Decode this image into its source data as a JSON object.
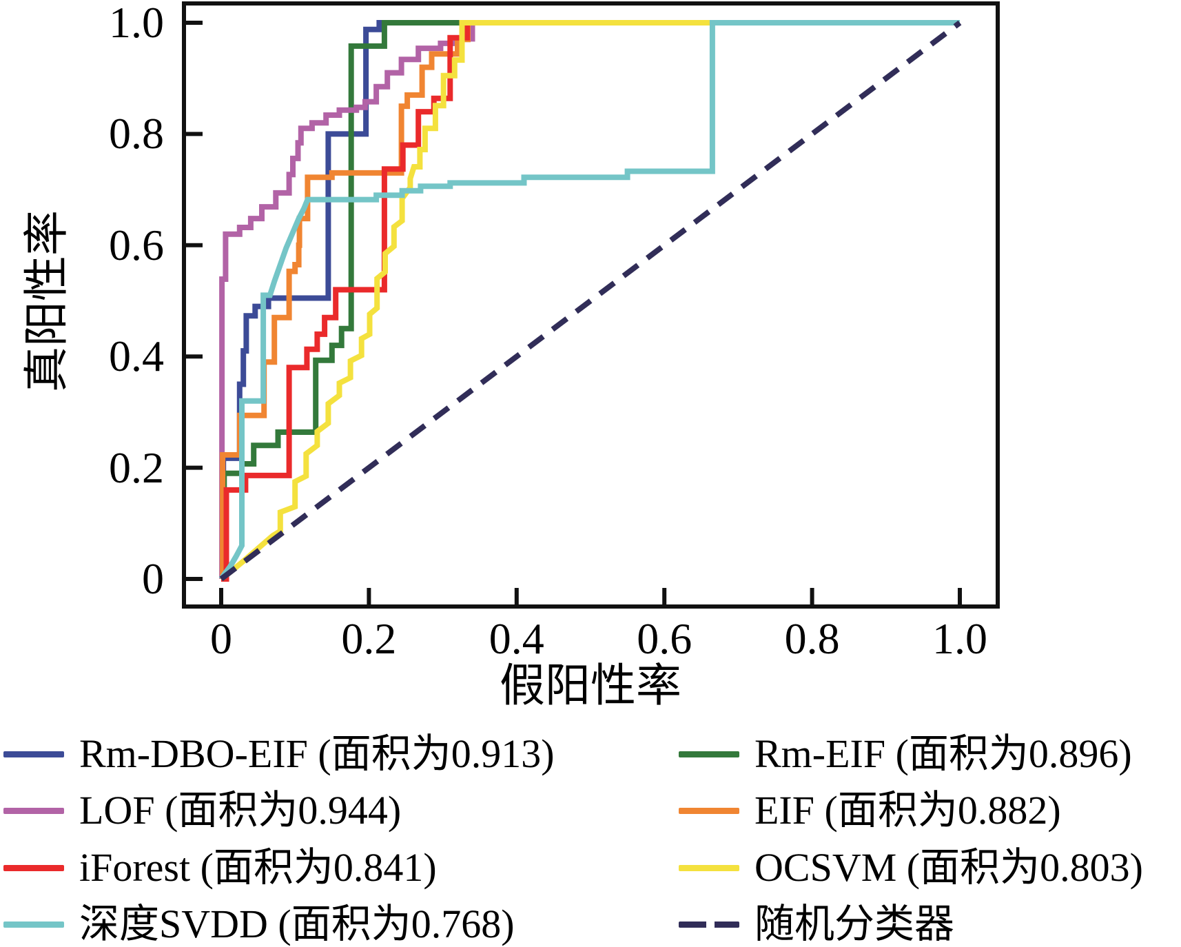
{
  "chart_data": {
    "type": "line",
    "title": "",
    "xlabel": "假阳性率",
    "ylabel": "真阳性率",
    "xlim": [
      -0.05,
      1.05
    ],
    "ylim": [
      -0.05,
      1.05
    ],
    "grid": false,
    "legend_position": "below",
    "frame_color": "#111111",
    "x_ticks": [
      0,
      0.2,
      0.4,
      0.6,
      0.8,
      1.0
    ],
    "x_tick_labels": [
      "0",
      "0.2",
      "0.4",
      "0.6",
      "0.8",
      "1.0"
    ],
    "y_ticks": [
      0,
      0.2,
      0.4,
      0.6,
      0.8,
      1.0
    ],
    "y_tick_labels": [
      "0",
      "0.2",
      "0.4",
      "0.6",
      "0.8",
      "1.0"
    ],
    "series": [
      {
        "name": "Rm-DBO-EIF",
        "label": "Rm-DBO-EIF (面积为0.913)",
        "auc": 0.913,
        "color": "#3C4B97",
        "dash": false,
        "points": [
          [
            0,
            0
          ],
          [
            0.003,
            0
          ],
          [
            0.003,
            0.217
          ],
          [
            0.025,
            0.217
          ],
          [
            0.025,
            0.35
          ],
          [
            0.03,
            0.35
          ],
          [
            0.03,
            0.41
          ],
          [
            0.034,
            0.41
          ],
          [
            0.034,
            0.473
          ],
          [
            0.046,
            0.473
          ],
          [
            0.046,
            0.49
          ],
          [
            0.064,
            0.49
          ],
          [
            0.064,
            0.505
          ],
          [
            0.145,
            0.505
          ],
          [
            0.145,
            0.8
          ],
          [
            0.196,
            0.8
          ],
          [
            0.196,
            0.988
          ],
          [
            0.214,
            0.988
          ],
          [
            0.214,
            1
          ],
          [
            1,
            1
          ]
        ]
      },
      {
        "name": "Rm-EIF",
        "label": "Rm-EIF (面积为0.896)",
        "auc": 0.896,
        "color": "#33793B",
        "dash": false,
        "points": [
          [
            0,
            0
          ],
          [
            0.004,
            0
          ],
          [
            0.004,
            0.19
          ],
          [
            0.028,
            0.19
          ],
          [
            0.028,
            0.207
          ],
          [
            0.044,
            0.207
          ],
          [
            0.044,
            0.24
          ],
          [
            0.077,
            0.24
          ],
          [
            0.077,
            0.264
          ],
          [
            0.128,
            0.264
          ],
          [
            0.128,
            0.393
          ],
          [
            0.15,
            0.393
          ],
          [
            0.15,
            0.42
          ],
          [
            0.163,
            0.42
          ],
          [
            0.163,
            0.45
          ],
          [
            0.176,
            0.45
          ],
          [
            0.176,
            0.958
          ],
          [
            0.221,
            0.958
          ],
          [
            0.221,
            1
          ],
          [
            1,
            1
          ]
        ]
      },
      {
        "name": "LOF",
        "label": "LOF (面积为0.944)",
        "auc": 0.944,
        "color": "#B263A6",
        "dash": false,
        "points": [
          [
            0,
            0
          ],
          [
            0.001,
            0
          ],
          [
            0.001,
            0.539
          ],
          [
            0.006,
            0.539
          ],
          [
            0.006,
            0.62
          ],
          [
            0.025,
            0.62
          ],
          [
            0.025,
            0.632
          ],
          [
            0.04,
            0.632
          ],
          [
            0.04,
            0.648
          ],
          [
            0.055,
            0.648
          ],
          [
            0.055,
            0.669
          ],
          [
            0.074,
            0.669
          ],
          [
            0.074,
            0.694
          ],
          [
            0.092,
            0.694
          ],
          [
            0.092,
            0.727
          ],
          [
            0.097,
            0.727
          ],
          [
            0.097,
            0.756
          ],
          [
            0.104,
            0.756
          ],
          [
            0.104,
            0.784
          ],
          [
            0.108,
            0.784
          ],
          [
            0.108,
            0.81
          ],
          [
            0.123,
            0.81
          ],
          [
            0.123,
            0.82
          ],
          [
            0.142,
            0.82
          ],
          [
            0.142,
            0.834
          ],
          [
            0.16,
            0.834
          ],
          [
            0.16,
            0.843
          ],
          [
            0.183,
            0.843
          ],
          [
            0.183,
            0.848
          ],
          [
            0.195,
            0.848
          ],
          [
            0.195,
            0.858
          ],
          [
            0.21,
            0.858
          ],
          [
            0.21,
            0.885
          ],
          [
            0.225,
            0.885
          ],
          [
            0.225,
            0.91
          ],
          [
            0.244,
            0.91
          ],
          [
            0.244,
            0.934
          ],
          [
            0.267,
            0.934
          ],
          [
            0.267,
            0.954
          ],
          [
            0.297,
            0.954
          ],
          [
            0.297,
            0.963
          ],
          [
            0.318,
            0.963
          ],
          [
            0.318,
            0.971
          ],
          [
            0.34,
            0.971
          ],
          [
            0.34,
            1
          ],
          [
            1,
            1
          ]
        ]
      },
      {
        "name": "EIF",
        "label": "EIF (面积为0.882)",
        "auc": 0.882,
        "color": "#F08532",
        "dash": false,
        "points": [
          [
            0,
            0
          ],
          [
            0.002,
            0
          ],
          [
            0.002,
            0.223
          ],
          [
            0.025,
            0.223
          ],
          [
            0.025,
            0.294
          ],
          [
            0.058,
            0.294
          ],
          [
            0.058,
            0.39
          ],
          [
            0.072,
            0.39
          ],
          [
            0.072,
            0.47
          ],
          [
            0.092,
            0.47
          ],
          [
            0.092,
            0.553
          ],
          [
            0.1,
            0.553
          ],
          [
            0.1,
            0.565
          ],
          [
            0.105,
            0.565
          ],
          [
            0.105,
            0.6
          ],
          [
            0.106,
            0.6
          ],
          [
            0.106,
            0.648
          ],
          [
            0.117,
            0.648
          ],
          [
            0.117,
            0.722
          ],
          [
            0.15,
            0.722
          ],
          [
            0.15,
            0.73
          ],
          [
            0.244,
            0.73
          ],
          [
            0.244,
            0.85
          ],
          [
            0.252,
            0.85
          ],
          [
            0.252,
            0.87
          ],
          [
            0.272,
            0.87
          ],
          [
            0.272,
            0.92
          ],
          [
            0.285,
            0.92
          ],
          [
            0.285,
            0.944
          ],
          [
            0.32,
            0.944
          ],
          [
            0.32,
            0.97
          ],
          [
            0.334,
            0.97
          ],
          [
            0.334,
            1
          ],
          [
            1,
            1
          ]
        ]
      },
      {
        "name": "iForest",
        "label": "iForest (面积为0.841)",
        "auc": 0.841,
        "color": "#EA2A2B",
        "dash": false,
        "points": [
          [
            0,
            0
          ],
          [
            0.007,
            0
          ],
          [
            0.007,
            0.16
          ],
          [
            0.033,
            0.16
          ],
          [
            0.033,
            0.186
          ],
          [
            0.092,
            0.186
          ],
          [
            0.092,
            0.38
          ],
          [
            0.116,
            0.38
          ],
          [
            0.116,
            0.413
          ],
          [
            0.13,
            0.413
          ],
          [
            0.13,
            0.44
          ],
          [
            0.14,
            0.44
          ],
          [
            0.14,
            0.47
          ],
          [
            0.155,
            0.47
          ],
          [
            0.155,
            0.52
          ],
          [
            0.221,
            0.52
          ],
          [
            0.221,
            0.737
          ],
          [
            0.246,
            0.737
          ],
          [
            0.246,
            0.78
          ],
          [
            0.267,
            0.78
          ],
          [
            0.267,
            0.84
          ],
          [
            0.288,
            0.84
          ],
          [
            0.288,
            0.864
          ],
          [
            0.31,
            0.864
          ],
          [
            0.31,
            0.973
          ],
          [
            0.333,
            0.973
          ],
          [
            0.333,
            1
          ],
          [
            1,
            1
          ]
        ]
      },
      {
        "name": "OCSVM",
        "label": "OCSVM (面积为0.803)",
        "auc": 0.803,
        "color": "#F4E13E",
        "dash": false,
        "points": [
          [
            0,
            0
          ],
          [
            0.012,
            0.012
          ],
          [
            0.03,
            0.032
          ],
          [
            0.05,
            0.055
          ],
          [
            0.07,
            0.078
          ],
          [
            0.08,
            0.086
          ],
          [
            0.08,
            0.12
          ],
          [
            0.1,
            0.13
          ],
          [
            0.1,
            0.175
          ],
          [
            0.115,
            0.185
          ],
          [
            0.115,
            0.225
          ],
          [
            0.13,
            0.24
          ],
          [
            0.13,
            0.265
          ],
          [
            0.145,
            0.28
          ],
          [
            0.145,
            0.315
          ],
          [
            0.16,
            0.33
          ],
          [
            0.16,
            0.352
          ],
          [
            0.175,
            0.362
          ],
          [
            0.175,
            0.392
          ],
          [
            0.19,
            0.402
          ],
          [
            0.19,
            0.432
          ],
          [
            0.201,
            0.44
          ],
          [
            0.201,
            0.476
          ],
          [
            0.211,
            0.487
          ],
          [
            0.211,
            0.54
          ],
          [
            0.222,
            0.552
          ],
          [
            0.222,
            0.585
          ],
          [
            0.234,
            0.598
          ],
          [
            0.234,
            0.633
          ],
          [
            0.245,
            0.644
          ],
          [
            0.245,
            0.684
          ],
          [
            0.256,
            0.704
          ],
          [
            0.256,
            0.72
          ],
          [
            0.261,
            0.741
          ],
          [
            0.269,
            0.741
          ],
          [
            0.269,
            0.772
          ],
          [
            0.276,
            0.772
          ],
          [
            0.276,
            0.81
          ],
          [
            0.29,
            0.81
          ],
          [
            0.29,
            0.851
          ],
          [
            0.301,
            0.851
          ],
          [
            0.301,
            0.905
          ],
          [
            0.316,
            0.905
          ],
          [
            0.316,
            0.933
          ],
          [
            0.326,
            0.933
          ],
          [
            0.326,
            1
          ],
          [
            1,
            1
          ]
        ]
      },
      {
        "name": "深度SVDD",
        "label": "深度SVDD (面积为0.768)",
        "auc": 0.768,
        "color": "#74C5C7",
        "dash": false,
        "points": [
          [
            0,
            0
          ],
          [
            0.005,
            0.01
          ],
          [
            0.012,
            0.022
          ],
          [
            0.02,
            0.04
          ],
          [
            0.028,
            0.06
          ],
          [
            0.028,
            0.32
          ],
          [
            0.057,
            0.32
          ],
          [
            0.057,
            0.51
          ],
          [
            0.066,
            0.51
          ],
          [
            0.072,
            0.535
          ],
          [
            0.08,
            0.565
          ],
          [
            0.088,
            0.595
          ],
          [
            0.097,
            0.623
          ],
          [
            0.105,
            0.648
          ],
          [
            0.112,
            0.666
          ],
          [
            0.117,
            0.682
          ],
          [
            0.21,
            0.682
          ],
          [
            0.21,
            0.69
          ],
          [
            0.245,
            0.69
          ],
          [
            0.245,
            0.698
          ],
          [
            0.27,
            0.698
          ],
          [
            0.27,
            0.706
          ],
          [
            0.31,
            0.706
          ],
          [
            0.31,
            0.712
          ],
          [
            0.41,
            0.712
          ],
          [
            0.41,
            0.722
          ],
          [
            0.55,
            0.722
          ],
          [
            0.55,
            0.733
          ],
          [
            0.665,
            0.733
          ],
          [
            0.665,
            1
          ],
          [
            1,
            1
          ]
        ]
      },
      {
        "name": "随机分类器",
        "label": "随机分类器",
        "auc": null,
        "color": "#312D58",
        "dash": true,
        "points": [
          [
            0,
            0
          ],
          [
            1,
            1
          ]
        ]
      }
    ]
  },
  "legend": {
    "left_column_series": [
      0,
      2,
      4,
      6
    ],
    "right_column_series": [
      1,
      3,
      5,
      7
    ]
  }
}
